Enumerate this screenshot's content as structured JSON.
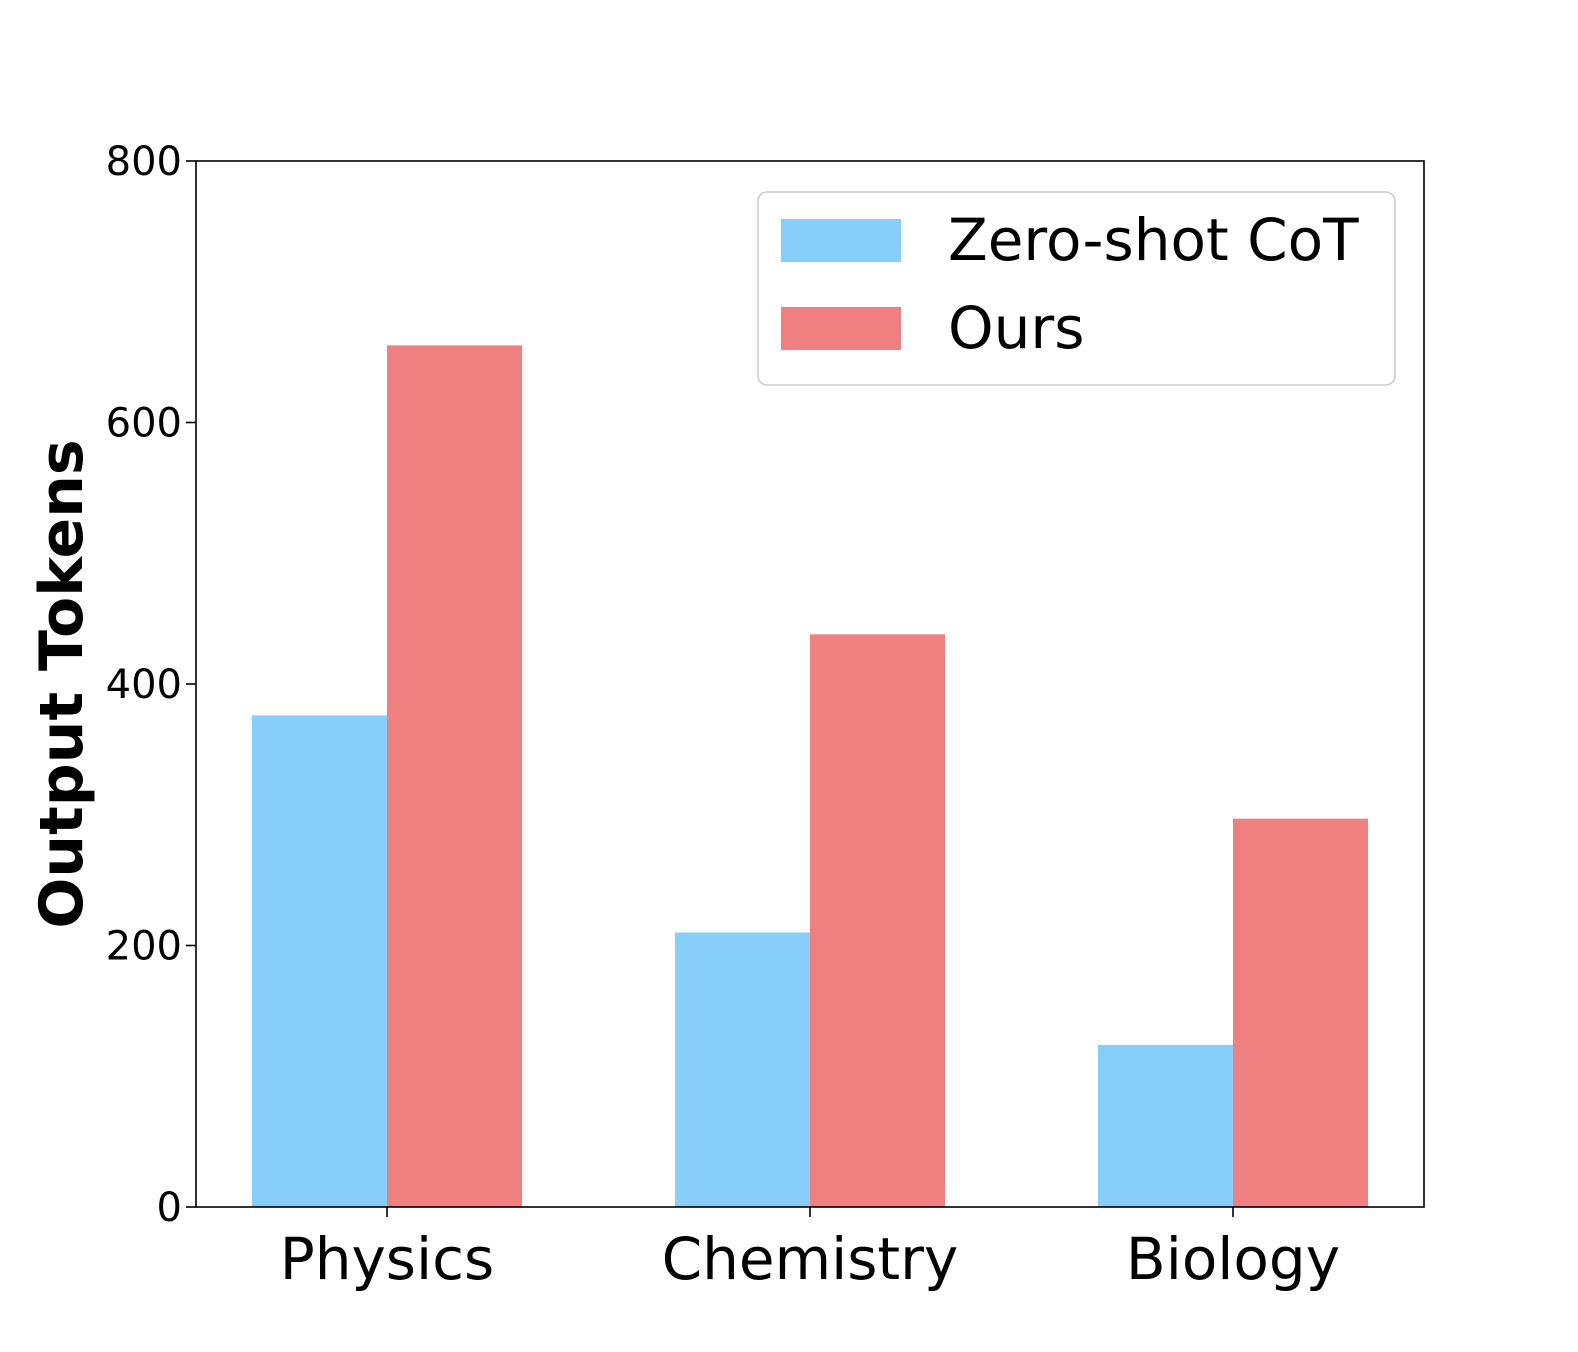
{
  "chart_data": {
    "type": "bar",
    "title": "",
    "xlabel": "",
    "ylabel": "Output Tokens",
    "categories": [
      "Physics",
      "Chemistry",
      "Biology"
    ],
    "series": [
      {
        "name": "Zero-shot CoT",
        "color": "#87CEFA",
        "values": [
          376,
          210,
          124
        ]
      },
      {
        "name": "Ours",
        "color": "#F08080",
        "values": [
          659,
          438,
          297
        ]
      }
    ],
    "ylim": [
      0,
      800
    ],
    "yticks": [
      "0",
      "200",
      "400",
      "600",
      "800"
    ],
    "grid": false,
    "legend_position": "top-right"
  }
}
